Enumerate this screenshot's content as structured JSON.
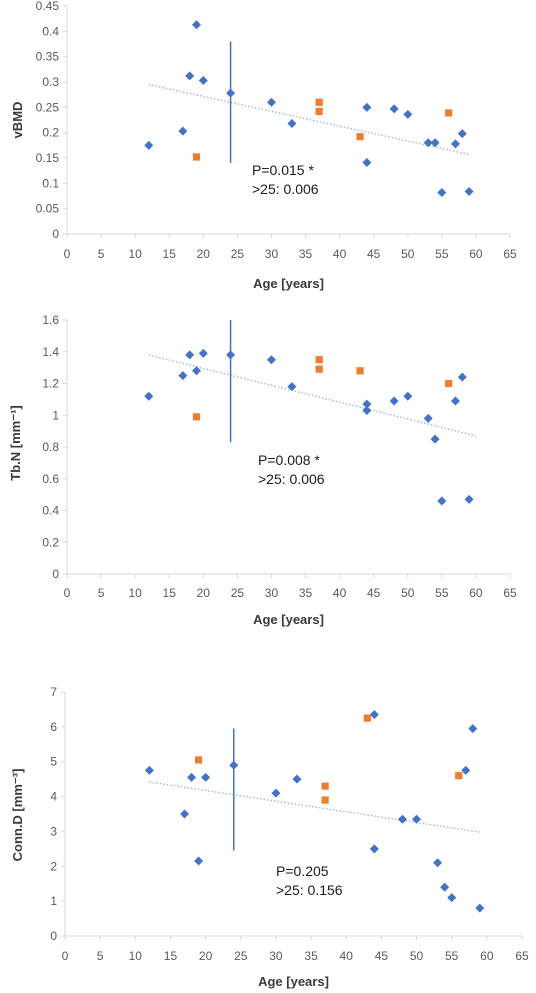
{
  "colors": {
    "series_a": "#4472C4",
    "series_b": "#ED7D31",
    "axis": "#d9d9d9",
    "trend": "#9DB7E0",
    "vline": "#4472C4"
  },
  "chart_data": [
    {
      "type": "scatter",
      "xlabel": "Age [years]",
      "ylabel": "vBMD",
      "xlim": [
        0,
        65
      ],
      "ylim": [
        0,
        0.45
      ],
      "xticks": [
        "0",
        "5",
        "10",
        "15",
        "20",
        "25",
        "30",
        "35",
        "40",
        "45",
        "50",
        "55",
        "60",
        "65"
      ],
      "yticks": [
        "0",
        "0.05",
        "0.1",
        "0.15",
        "0.2",
        "0.25",
        "0.3",
        "0.35",
        "0.4",
        "0.45"
      ],
      "vertical_line_x": 24,
      "vertical_line_range": [
        0.14,
        0.38
      ],
      "trendline": {
        "x": [
          12,
          59
        ],
        "y": [
          0.295,
          0.157
        ]
      },
      "annotation": [
        "P=0.015 *",
        ">25: 0.006"
      ],
      "series": [
        {
          "marker": "diamond",
          "points": [
            [
              12,
              0.175
            ],
            [
              17,
              0.203
            ],
            [
              18,
              0.312
            ],
            [
              19,
              0.413
            ],
            [
              20,
              0.303
            ],
            [
              24,
              0.278
            ],
            [
              30,
              0.26
            ],
            [
              33,
              0.218
            ],
            [
              44,
              0.25
            ],
            [
              44,
              0.141
            ],
            [
              48,
              0.247
            ],
            [
              50,
              0.236
            ],
            [
              53,
              0.18
            ],
            [
              54,
              0.18
            ],
            [
              55,
              0.082
            ],
            [
              57,
              0.178
            ],
            [
              58,
              0.198
            ],
            [
              59,
              0.084
            ]
          ]
        },
        {
          "marker": "square",
          "points": [
            [
              19,
              0.152
            ],
            [
              37,
              0.26
            ],
            [
              37,
              0.242
            ],
            [
              43,
              0.192
            ],
            [
              56,
              0.239
            ]
          ]
        }
      ]
    },
    {
      "type": "scatter",
      "xlabel": "Age [years]",
      "ylabel": "Tb.N [mm⁻¹]",
      "xlim": [
        0,
        65
      ],
      "ylim": [
        0,
        1.6
      ],
      "xticks": [
        "0",
        "5",
        "10",
        "15",
        "20",
        "25",
        "30",
        "35",
        "40",
        "45",
        "50",
        "55",
        "60",
        "65"
      ],
      "yticks": [
        "0",
        "0.2",
        "0.4",
        "0.6",
        "0.8",
        "1",
        "1.2",
        "1.4",
        "1.6"
      ],
      "vertical_line_x": 24,
      "vertical_line_range": [
        0.83,
        1.6
      ],
      "trendline": {
        "x": [
          12,
          60
        ],
        "y": [
          1.38,
          0.87
        ]
      },
      "annotation": [
        "P=0.008 *",
        ">25: 0.006"
      ],
      "series": [
        {
          "marker": "diamond",
          "points": [
            [
              12,
              1.12
            ],
            [
              17,
              1.25
            ],
            [
              18,
              1.38
            ],
            [
              19,
              1.28
            ],
            [
              20,
              1.39
            ],
            [
              24,
              1.38
            ],
            [
              30,
              1.35
            ],
            [
              33,
              1.18
            ],
            [
              44,
              1.07
            ],
            [
              44,
              1.03
            ],
            [
              48,
              1.09
            ],
            [
              50,
              1.12
            ],
            [
              53,
              0.98
            ],
            [
              54,
              0.85
            ],
            [
              55,
              0.46
            ],
            [
              57,
              1.09
            ],
            [
              58,
              1.24
            ],
            [
              59,
              0.47
            ]
          ]
        },
        {
          "marker": "square",
          "points": [
            [
              19,
              0.99
            ],
            [
              37,
              1.35
            ],
            [
              37,
              1.29
            ],
            [
              43,
              1.28
            ],
            [
              56,
              1.2
            ]
          ]
        }
      ]
    },
    {
      "type": "scatter",
      "xlabel": "Age [years]",
      "ylabel": "Conn.D [mm⁻³]",
      "xlim": [
        0,
        65
      ],
      "ylim": [
        0,
        7
      ],
      "xticks": [
        "0",
        "5",
        "10",
        "15",
        "20",
        "25",
        "30",
        "35",
        "40",
        "45",
        "50",
        "55",
        "60",
        "65"
      ],
      "yticks": [
        "0",
        "1",
        "2",
        "3",
        "4",
        "5",
        "6",
        "7"
      ],
      "vertical_line_x": 24,
      "vertical_line_range": [
        2.45,
        5.95
      ],
      "trendline": {
        "x": [
          12,
          59
        ],
        "y": [
          4.42,
          2.98
        ]
      },
      "annotation": [
        "P=0.205",
        ">25: 0.156"
      ],
      "series": [
        {
          "marker": "diamond",
          "points": [
            [
              12,
              4.75
            ],
            [
              17,
              3.5
            ],
            [
              18,
              4.55
            ],
            [
              19,
              2.15
            ],
            [
              20,
              4.55
            ],
            [
              24,
              4.9
            ],
            [
              30,
              4.1
            ],
            [
              33,
              4.5
            ],
            [
              44,
              6.35
            ],
            [
              44,
              2.5
            ],
            [
              48,
              3.35
            ],
            [
              50,
              3.35
            ],
            [
              53,
              2.1
            ],
            [
              54,
              1.4
            ],
            [
              55,
              1.1
            ],
            [
              57,
              4.75
            ],
            [
              58,
              5.95
            ],
            [
              59,
              0.8
            ]
          ]
        },
        {
          "marker": "square",
          "points": [
            [
              19,
              5.05
            ],
            [
              37,
              4.3
            ],
            [
              37,
              3.9
            ],
            [
              43,
              6.25
            ],
            [
              56,
              4.6
            ]
          ]
        }
      ]
    }
  ]
}
